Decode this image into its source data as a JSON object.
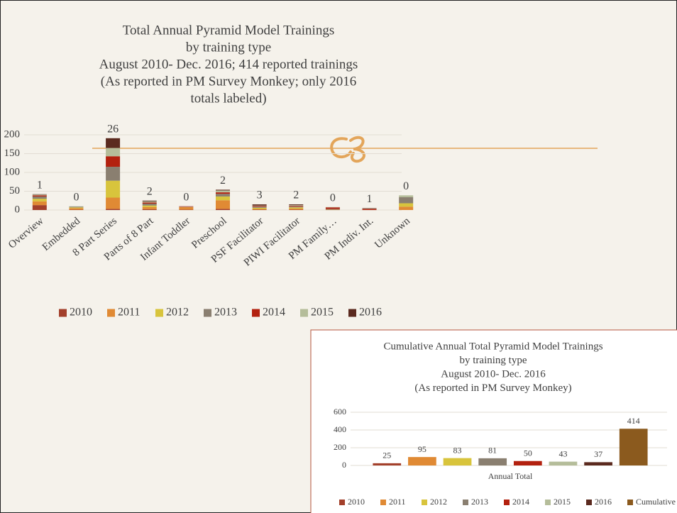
{
  "chart_data": [
    {
      "type": "stacked_bar",
      "title": [
        "Total Annual Pyramid Model Trainings",
        "by training type",
        "August 2010- Dec. 2016; 414 reported trainings",
        "(As reported in PM Survey Monkey; only 2016",
        "totals labeled)"
      ],
      "categories": [
        "Overview",
        "Embedded",
        "8 Part Series",
        "Parts of 8 Part",
        "Infant Toddler",
        "Preschool",
        "PSF Facilitator",
        "PIWI Facilitator",
        "PM Family…",
        "PM Indiv. Int.",
        "Unknown"
      ],
      "series": [
        {
          "name": "2010",
          "color": "#a3402b",
          "values": [
            13,
            1,
            3,
            2,
            1,
            3,
            1,
            1,
            0,
            0,
            0
          ]
        },
        {
          "name": "2011",
          "color": "#e08a34",
          "values": [
            10,
            4,
            30,
            6,
            7,
            23,
            2,
            3,
            1,
            0,
            9
          ]
        },
        {
          "name": "2012",
          "color": "#d8c43c",
          "values": [
            7,
            2,
            45,
            4,
            0,
            10,
            3,
            3,
            0,
            0,
            9
          ]
        },
        {
          "name": "2013",
          "color": "#8a7f70",
          "values": [
            6,
            2,
            37,
            5,
            1,
            7,
            3,
            2,
            2,
            0,
            16
          ]
        },
        {
          "name": "2014",
          "color": "#b3210f",
          "values": [
            3,
            0,
            28,
            3,
            1,
            4,
            2,
            2,
            4,
            3,
            0
          ]
        },
        {
          "name": "2015",
          "color": "#b5bd9a",
          "values": [
            2,
            1,
            22,
            3,
            0,
            5,
            1,
            2,
            1,
            1,
            5
          ]
        },
        {
          "name": "2016",
          "color": "#5b2a1f",
          "values": [
            1,
            0,
            26,
            2,
            0,
            2,
            3,
            2,
            0,
            1,
            0
          ]
        }
      ],
      "ylim": [
        0,
        200
      ],
      "yticks": [
        0,
        50,
        100,
        150,
        200
      ],
      "grid": true,
      "legend": "bottom"
    },
    {
      "type": "bar",
      "title": [
        "Cumulative Annual Total Pyramid Model Trainings",
        "by training type",
        "August 2010- Dec. 2016",
        "(As reported in PM Survey Monkey)"
      ],
      "categories": [
        "Annual  Total"
      ],
      "series": [
        {
          "name": "2010",
          "color": "#a3402b",
          "values": [
            25
          ]
        },
        {
          "name": "2011",
          "color": "#e08a34",
          "values": [
            95
          ]
        },
        {
          "name": "2012",
          "color": "#d8c43c",
          "values": [
            83
          ]
        },
        {
          "name": "2013",
          "color": "#8a7f70",
          "values": [
            81
          ]
        },
        {
          "name": "2014",
          "color": "#b3210f",
          "values": [
            50
          ]
        },
        {
          "name": "2015",
          "color": "#b5bd9a",
          "values": [
            43
          ]
        },
        {
          "name": "2016",
          "color": "#5b2a1f",
          "values": [
            37
          ]
        },
        {
          "name": "Cumulative Total",
          "color": "#8b5a1e",
          "values": [
            414
          ]
        }
      ],
      "ylim": [
        0,
        600
      ],
      "yticks": [
        0,
        200,
        400,
        600
      ],
      "grid": true,
      "legend": "bottom"
    }
  ]
}
